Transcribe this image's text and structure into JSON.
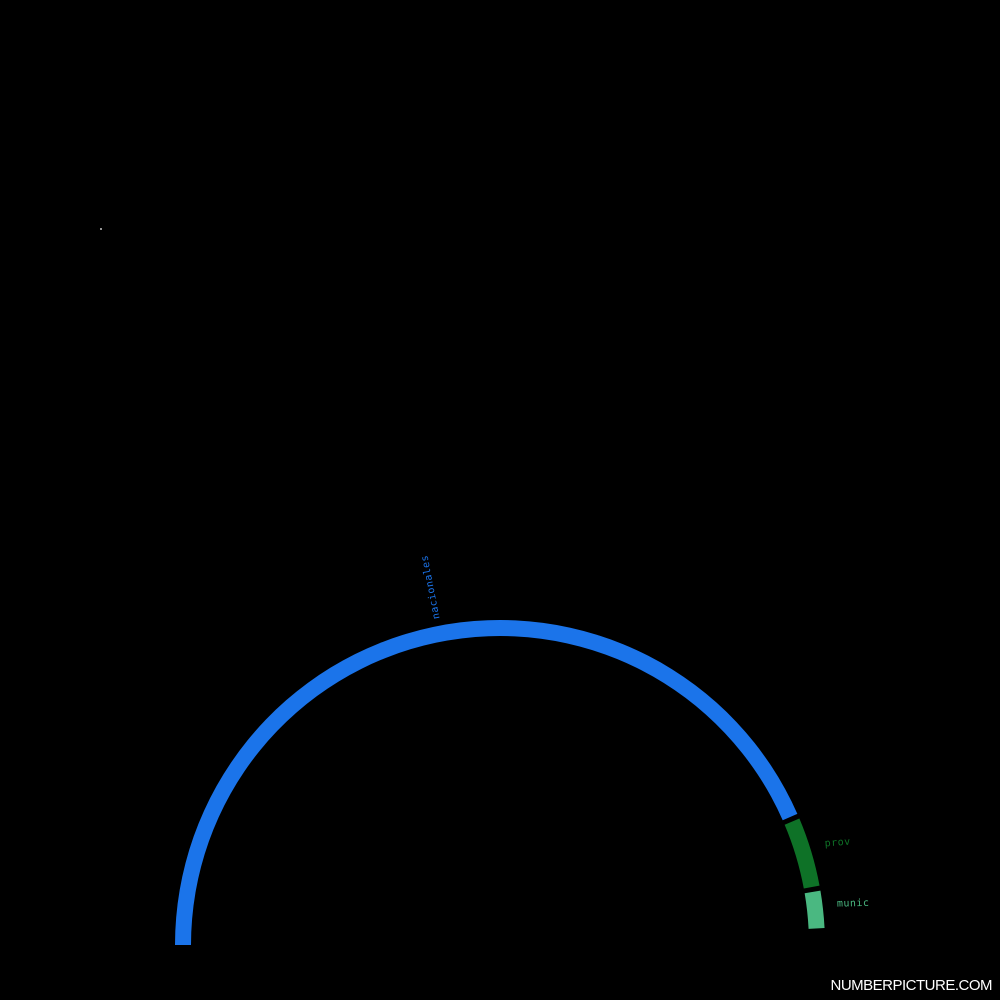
{
  "chart_data": {
    "type": "pie",
    "style": "semicircle ring (donut arc)",
    "segments": [
      {
        "label": "nacionales",
        "value": 88.5,
        "color": "#1b74ea"
      },
      {
        "label": "prov",
        "value": 7.5,
        "color": "#0e7227"
      },
      {
        "label": "munic",
        "value": 4.0,
        "color": "#4ab881"
      }
    ],
    "legend": "labels placed outside each segment",
    "grid": false
  },
  "decoration": {
    "star_color": "#ffffff"
  },
  "watermark": "NUMBERPICTURE.COM",
  "background_color": "#000000"
}
